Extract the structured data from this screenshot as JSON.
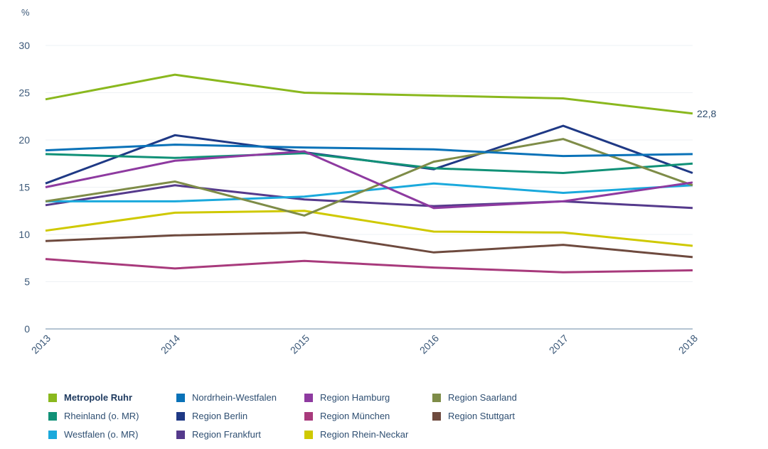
{
  "chart_data": {
    "type": "line",
    "title": "",
    "ylabel": "%",
    "xlabel": "",
    "x": [
      "2013",
      "2014",
      "2015",
      "2016",
      "2017",
      "2018"
    ],
    "ylim": [
      0,
      30
    ],
    "yticks": [
      0,
      5,
      10,
      15,
      20,
      25,
      30
    ],
    "ytick_labels": [
      "0",
      "5",
      "10",
      "15",
      "20",
      "25",
      "30"
    ],
    "grid": true,
    "legend_position": "bottom",
    "annotations": [
      {
        "series": "Metropole Ruhr",
        "x": "2018",
        "text": "22,8"
      }
    ],
    "series": [
      {
        "name": "Metropole Ruhr",
        "color": "#8ab81e",
        "bold": true,
        "values": [
          24.3,
          26.9,
          25.0,
          24.7,
          24.4,
          22.8
        ]
      },
      {
        "name": "Nordrhein-Westfalen",
        "color": "#0a72b8",
        "values": [
          18.9,
          19.5,
          19.2,
          19.0,
          18.3,
          18.5
        ]
      },
      {
        "name": "Region Hamburg",
        "color": "#8e3aa0",
        "values": [
          15.0,
          17.8,
          18.8,
          12.8,
          13.5,
          15.5
        ]
      },
      {
        "name": "Region Saarland",
        "color": "#7e8c48",
        "values": [
          13.5,
          15.6,
          12.0,
          17.7,
          20.1,
          15.2
        ]
      },
      {
        "name": "Rheinland (o. MR)",
        "color": "#119177",
        "values": [
          18.5,
          18.1,
          18.6,
          17.0,
          16.5,
          17.5
        ]
      },
      {
        "name": "Region Berlin",
        "color": "#1f3985",
        "values": [
          15.4,
          20.5,
          18.7,
          16.9,
          21.5,
          16.5
        ]
      },
      {
        "name": "Region München",
        "color": "#a83a7c",
        "values": [
          7.4,
          6.4,
          7.2,
          6.5,
          6.0,
          6.2
        ]
      },
      {
        "name": "Region Stuttgart",
        "color": "#6e4a3e",
        "values": [
          9.3,
          9.9,
          10.2,
          8.1,
          8.9,
          7.6
        ]
      },
      {
        "name": "Westfalen (o. MR)",
        "color": "#1aa9dc",
        "values": [
          13.5,
          13.5,
          14.0,
          15.4,
          14.4,
          15.2
        ]
      },
      {
        "name": "Region Frankfurt",
        "color": "#553a8c",
        "values": [
          13.1,
          15.2,
          13.7,
          13.0,
          13.5,
          12.8
        ]
      },
      {
        "name": "Region Rhein-Neckar",
        "color": "#cfc900",
        "values": [
          10.4,
          12.3,
          12.5,
          10.3,
          10.2,
          8.8
        ]
      }
    ]
  },
  "legend": {
    "items": [
      {
        "label": "Metropole Ruhr",
        "color": "#8ab81e",
        "bold": true
      },
      {
        "label": "Nordrhein-Westfalen",
        "color": "#0a72b8"
      },
      {
        "label": "Region Hamburg",
        "color": "#8e3aa0"
      },
      {
        "label": "Region Saarland",
        "color": "#7e8c48"
      },
      {
        "label": "Rheinland (o. MR)",
        "color": "#119177"
      },
      {
        "label": "Region Berlin",
        "color": "#1f3985"
      },
      {
        "label": "Region München",
        "color": "#a83a7c"
      },
      {
        "label": "Region Stuttgart",
        "color": "#6e4a3e"
      },
      {
        "label": "Westfalen (o. MR)",
        "color": "#1aa9dc"
      },
      {
        "label": "Region Frankfurt",
        "color": "#553a8c"
      },
      {
        "label": "Region Rhein-Neckar",
        "color": "#cfc900"
      }
    ]
  }
}
